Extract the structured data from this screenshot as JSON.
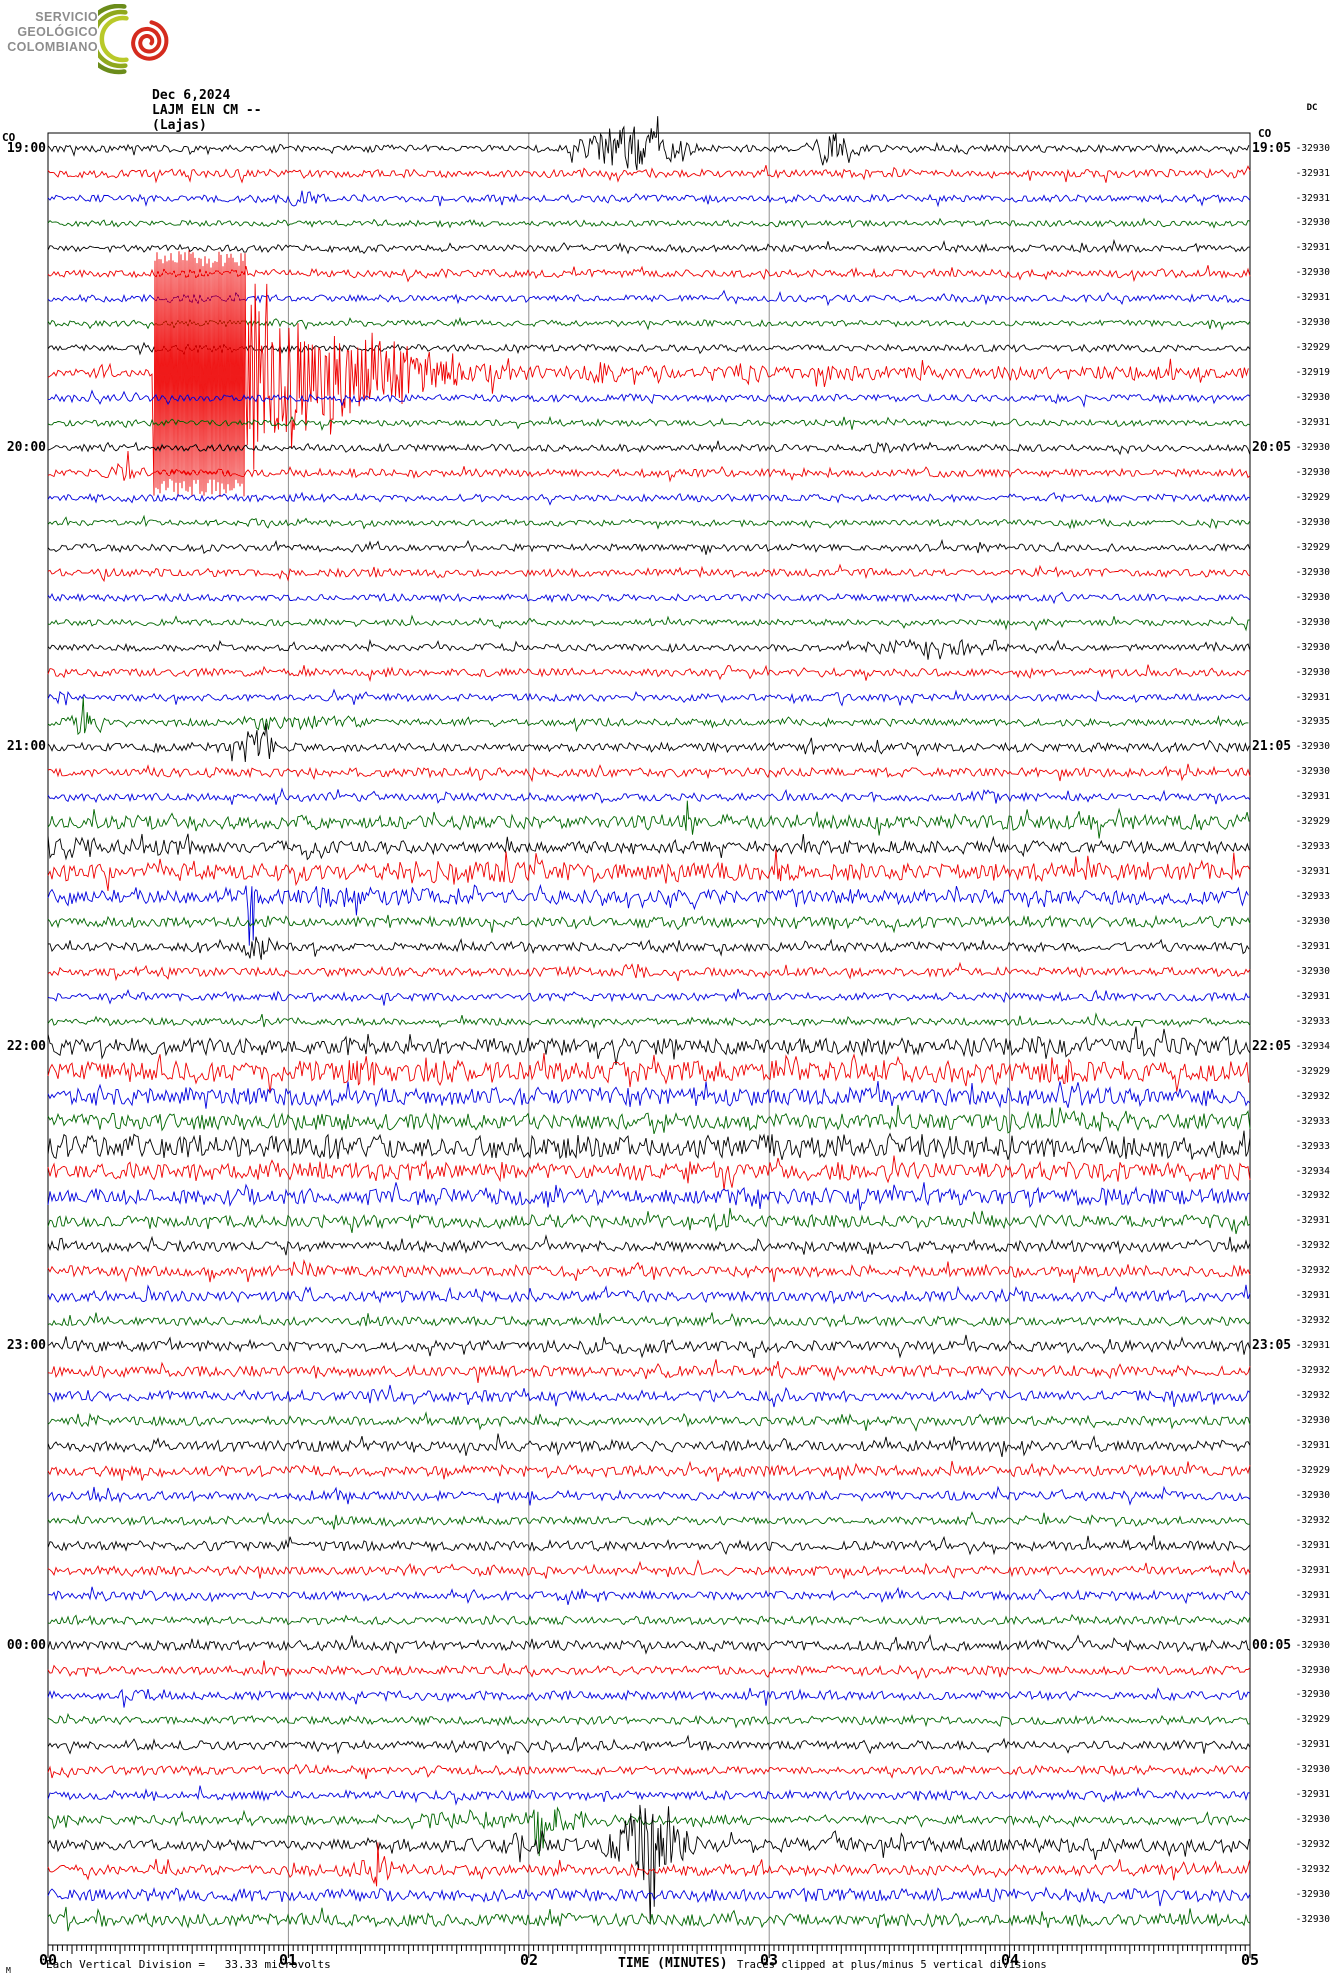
{
  "logo": {
    "lines": [
      "SERVICIO",
      "GEOLÓGICO",
      "COLOMBIANO"
    ]
  },
  "header": {
    "date": "Dec 6,2024",
    "station": "LAJM ELN CM --",
    "place": "(Lajas)"
  },
  "corner_labels": {
    "top_left": "CO",
    "top_right": "CO",
    "dc_header": "DC"
  },
  "left_labels": [
    {
      "row": 0,
      "text": "19:00"
    },
    {
      "row": 12,
      "text": "20:00"
    },
    {
      "row": 24,
      "text": "21:00"
    },
    {
      "row": 36,
      "text": "22:00"
    },
    {
      "row": 48,
      "text": "23:00"
    },
    {
      "row": 60,
      "text": "00:00"
    }
  ],
  "right_labels": [
    {
      "row": 0,
      "text": "19:05"
    },
    {
      "row": 12,
      "text": "20:05"
    },
    {
      "row": 24,
      "text": "21:05"
    },
    {
      "row": 36,
      "text": "22:05"
    },
    {
      "row": 48,
      "text": "23:05"
    },
    {
      "row": 60,
      "text": "00:05"
    }
  ],
  "axis": {
    "minute_labels": [
      "00",
      "01",
      "02",
      "03",
      "04",
      "05"
    ],
    "title": "TIME (MINUTES)",
    "clip_note": "Traces clipped at plus/minus 5 vertical divisions",
    "scale_note": "Each Vertical Division =   33.33 microvolts",
    "micro_prefix": "M"
  },
  "colors": {
    "black": "#000000",
    "red": "#ee0000",
    "blue": "#0000dd",
    "green": "#006600",
    "grid": "#909090",
    "border": "#000000",
    "logo_text": "#8d8d8d",
    "logo_red": "#d52b1e",
    "logo_greens": [
      "#6b8c1a",
      "#8fa81d",
      "#b9c929"
    ]
  },
  "chart_data": {
    "type": "line",
    "title": "LAJM ELN CM -- (Lajas) helicorder, Dec 6,2024",
    "xlabel": "TIME (MINUTES)",
    "x_range_minutes": [
      0,
      5
    ],
    "trace_interval_minutes": 5,
    "start_time": "19:00",
    "end_time": "00:55",
    "division_microvolts": 33.33,
    "clip_divisions": 5,
    "network": "CO",
    "dc_label": "DC",
    "rows": [
      {
        "t": "19:00",
        "c": "black",
        "dc": -32930,
        "a": 4,
        "e": [
          {
            "type": "burst",
            "m": 2.42,
            "w": 0.22,
            "amp": 26
          },
          {
            "type": "burst",
            "m": 3.28,
            "w": 0.1,
            "amp": 20
          }
        ]
      },
      {
        "t": "19:05",
        "c": "red",
        "dc": -32931,
        "a": 4.5,
        "e": []
      },
      {
        "t": "19:10",
        "c": "blue",
        "dc": -32931,
        "a": 4,
        "e": [
          {
            "type": "burst",
            "m": 1.05,
            "w": 0.13,
            "amp": 9
          }
        ]
      },
      {
        "t": "19:15",
        "c": "green",
        "dc": -32930,
        "a": 3.5,
        "e": []
      },
      {
        "t": "19:20",
        "c": "black",
        "dc": -32931,
        "a": 4,
        "e": []
      },
      {
        "t": "19:25",
        "c": "red",
        "dc": -32930,
        "a": 4.5,
        "e": []
      },
      {
        "t": "19:30",
        "c": "blue",
        "dc": -32931,
        "a": 4,
        "e": []
      },
      {
        "t": "19:35",
        "c": "green",
        "dc": -32930,
        "a": 3.5,
        "e": []
      },
      {
        "t": "19:40",
        "c": "black",
        "dc": -32929,
        "a": 4,
        "e": []
      },
      {
        "t": "19:45",
        "c": "red",
        "dc": -32919,
        "a": 4,
        "e": [
          {
            "type": "burst",
            "m": 0.22,
            "w": 0.05,
            "amp": 10
          },
          {
            "type": "sat",
            "m0": 0.44,
            "m1": 0.82
          },
          {
            "type": "decay",
            "m0": 0.82,
            "amp": 120,
            "tau": 0.45
          },
          {
            "type": "burst",
            "m": 1.15,
            "w": 0.12,
            "amp": 55
          },
          {
            "type": "burst",
            "m": 1.45,
            "w": 0.1,
            "amp": 35
          },
          {
            "type": "burst",
            "m": 2.3,
            "w": 0.15,
            "amp": 14
          },
          {
            "type": "burst",
            "m": 2.9,
            "w": 0.15,
            "amp": 12
          },
          {
            "type": "flat",
            "m0": 0.82,
            "m1": 5,
            "amp": 8
          }
        ]
      },
      {
        "t": "19:50",
        "c": "blue",
        "dc": -32930,
        "a": 4,
        "e": []
      },
      {
        "t": "19:55",
        "c": "green",
        "dc": -32931,
        "a": 3.5,
        "e": []
      },
      {
        "t": "20:00",
        "c": "black",
        "dc": -32930,
        "a": 4,
        "e": [
          {
            "type": "flat",
            "m0": 3.4,
            "m1": 3.7,
            "amp": 6
          }
        ]
      },
      {
        "t": "20:05",
        "c": "red",
        "dc": -32930,
        "a": 4.5,
        "e": [
          {
            "type": "burst",
            "m": 0.3,
            "w": 0.07,
            "amp": 14
          }
        ]
      },
      {
        "t": "20:10",
        "c": "blue",
        "dc": -32929,
        "a": 4,
        "e": []
      },
      {
        "t": "20:15",
        "c": "green",
        "dc": -32930,
        "a": 3.5,
        "e": [
          {
            "type": "burst",
            "m": 0.9,
            "w": 0.1,
            "amp": 7
          }
        ]
      },
      {
        "t": "20:20",
        "c": "black",
        "dc": -32929,
        "a": 4,
        "e": []
      },
      {
        "t": "20:25",
        "c": "red",
        "dc": -32930,
        "a": 4.5,
        "e": [
          {
            "type": "burst",
            "m": 0.25,
            "w": 0.06,
            "amp": 10
          }
        ]
      },
      {
        "t": "20:30",
        "c": "blue",
        "dc": -32930,
        "a": 4,
        "e": []
      },
      {
        "t": "20:35",
        "c": "green",
        "dc": -32930,
        "a": 3.5,
        "e": []
      },
      {
        "t": "20:40",
        "c": "black",
        "dc": -32930,
        "a": 4,
        "e": [
          {
            "type": "flat",
            "m0": 3.4,
            "m1": 3.95,
            "amp": 8
          }
        ]
      },
      {
        "t": "20:45",
        "c": "red",
        "dc": -32930,
        "a": 4.5,
        "e": []
      },
      {
        "t": "20:50",
        "c": "blue",
        "dc": -32931,
        "a": 4,
        "e": [
          {
            "type": "spike",
            "m": 0.06,
            "amp": 14
          },
          {
            "type": "spike",
            "m": 3.3,
            "amp": 11
          }
        ]
      },
      {
        "t": "20:55",
        "c": "green",
        "dc": -32935,
        "a": 4,
        "e": [
          {
            "type": "burst",
            "m": 0.16,
            "w": 0.09,
            "amp": 17
          },
          {
            "type": "flat",
            "m0": 0.8,
            "m1": 1.3,
            "amp": 8
          }
        ]
      },
      {
        "t": "21:00",
        "c": "black",
        "dc": -32930,
        "a": 5,
        "e": [
          {
            "type": "burst",
            "m": 0.86,
            "w": 0.09,
            "amp": 22
          }
        ]
      },
      {
        "t": "21:05",
        "c": "red",
        "dc": -32930,
        "a": 5,
        "e": []
      },
      {
        "t": "21:10",
        "c": "blue",
        "dc": -32931,
        "a": 4.5,
        "e": [
          {
            "type": "burst",
            "m": 3.9,
            "w": 0.08,
            "amp": 9
          }
        ]
      },
      {
        "t": "21:15",
        "c": "green",
        "dc": -32929,
        "a": 8,
        "e": [
          {
            "type": "spike",
            "m": 2.67,
            "amp": 26
          }
        ]
      },
      {
        "t": "21:20",
        "c": "black",
        "dc": -32933,
        "a": 7,
        "e": [
          {
            "type": "decay",
            "m0": 0,
            "amp": 14,
            "tau": 1.2
          },
          {
            "type": "spike",
            "m": 1.07,
            "amp": 18
          }
        ]
      },
      {
        "t": "21:25",
        "c": "red",
        "dc": -32931,
        "a": 10,
        "e": [
          {
            "type": "flat",
            "m0": 1.4,
            "m1": 2.3,
            "amp": 13
          },
          {
            "type": "spike",
            "m": 3.05,
            "amp": 26
          }
        ]
      },
      {
        "t": "21:30",
        "c": "blue",
        "dc": -32933,
        "a": 8,
        "e": [
          {
            "type": "spike",
            "m": 0.85,
            "amp": 34
          },
          {
            "type": "flat",
            "m0": 1.1,
            "m1": 1.6,
            "amp": 11
          }
        ]
      },
      {
        "t": "21:35",
        "c": "green",
        "dc": -32930,
        "a": 6,
        "e": []
      },
      {
        "t": "21:40",
        "c": "black",
        "dc": -32931,
        "a": 5,
        "e": [
          {
            "type": "burst",
            "m": 0.88,
            "w": 0.09,
            "amp": 17
          }
        ]
      },
      {
        "t": "21:45",
        "c": "red",
        "dc": -32930,
        "a": 5,
        "e": [
          {
            "type": "burst",
            "m": 2.45,
            "w": 0.07,
            "amp": 12
          }
        ]
      },
      {
        "t": "21:50",
        "c": "blue",
        "dc": -32931,
        "a": 4.5,
        "e": []
      },
      {
        "t": "21:55",
        "c": "green",
        "dc": -32933,
        "a": 4,
        "e": []
      },
      {
        "t": "22:00",
        "c": "black",
        "dc": -32934,
        "a": 9,
        "e": [
          {
            "type": "flat",
            "m0": 3.8,
            "m1": 5,
            "amp": 11
          },
          {
            "type": "spike",
            "m": 1.25,
            "amp": 14
          }
        ]
      },
      {
        "t": "22:05",
        "c": "red",
        "dc": -32929,
        "a": 12,
        "e": [
          {
            "type": "burst",
            "m": 1.3,
            "w": 0.13,
            "amp": 19
          },
          {
            "type": "burst",
            "m": 4.2,
            "w": 0.18,
            "amp": 17
          }
        ]
      },
      {
        "t": "22:10",
        "c": "blue",
        "dc": -32932,
        "a": 10,
        "e": [
          {
            "type": "spike",
            "m": 1.9,
            "amp": 17
          }
        ]
      },
      {
        "t": "22:15",
        "c": "green",
        "dc": -32933,
        "a": 9,
        "e": [
          {
            "type": "flat",
            "m0": 3.9,
            "m1": 4.5,
            "amp": 12
          }
        ]
      },
      {
        "t": "22:20",
        "c": "black",
        "dc": -32933,
        "a": 13,
        "e": []
      },
      {
        "t": "22:25",
        "c": "red",
        "dc": -32934,
        "a": 10,
        "e": []
      },
      {
        "t": "22:30",
        "c": "blue",
        "dc": -32932,
        "a": 9,
        "e": [
          {
            "type": "burst",
            "m": 4.1,
            "w": 0.15,
            "amp": 12
          }
        ]
      },
      {
        "t": "22:35",
        "c": "green",
        "dc": -32931,
        "a": 7,
        "e": [
          {
            "type": "burst",
            "m": 2.8,
            "w": 0.18,
            "amp": 10
          }
        ]
      },
      {
        "t": "22:40",
        "c": "black",
        "dc": -32932,
        "a": 6,
        "e": []
      },
      {
        "t": "22:45",
        "c": "red",
        "dc": -32932,
        "a": 6,
        "e": [
          {
            "type": "spike",
            "m": 2.45,
            "amp": 12
          }
        ]
      },
      {
        "t": "22:50",
        "c": "blue",
        "dc": -32931,
        "a": 6,
        "e": []
      },
      {
        "t": "22:55",
        "c": "green",
        "dc": -32932,
        "a": 5,
        "e": []
      },
      {
        "t": "23:00",
        "c": "black",
        "dc": -32931,
        "a": 6,
        "e": [
          {
            "type": "flat",
            "m0": 2.2,
            "m1": 2.6,
            "amp": 9
          }
        ]
      },
      {
        "t": "23:05",
        "c": "red",
        "dc": -32932,
        "a": 6,
        "e": [
          {
            "type": "burst",
            "m": 2.6,
            "w": 0.13,
            "amp": 10
          }
        ]
      },
      {
        "t": "23:10",
        "c": "blue",
        "dc": -32932,
        "a": 6,
        "e": [
          {
            "type": "burst",
            "m": 1.35,
            "w": 0.09,
            "amp": 11
          }
        ]
      },
      {
        "t": "23:15",
        "c": "green",
        "dc": -32930,
        "a": 5,
        "e": []
      },
      {
        "t": "23:20",
        "c": "black",
        "dc": -32931,
        "a": 6,
        "e": []
      },
      {
        "t": "23:25",
        "c": "red",
        "dc": -32929,
        "a": 6,
        "e": [
          {
            "type": "burst",
            "m": 0.3,
            "w": 0.09,
            "amp": 9
          }
        ]
      },
      {
        "t": "23:30",
        "c": "blue",
        "dc": -32930,
        "a": 5,
        "e": [
          {
            "type": "spike",
            "m": 1.2,
            "amp": 10
          }
        ]
      },
      {
        "t": "23:35",
        "c": "green",
        "dc": -32932,
        "a": 4.5,
        "e": [
          {
            "type": "spike",
            "m": 1.18,
            "amp": 14
          }
        ]
      },
      {
        "t": "23:40",
        "c": "black",
        "dc": -32931,
        "a": 5.5,
        "e": []
      },
      {
        "t": "23:45",
        "c": "red",
        "dc": -32931,
        "a": 5,
        "e": [
          {
            "type": "burst",
            "m": 0.35,
            "w": 0.06,
            "amp": 8
          }
        ]
      },
      {
        "t": "23:50",
        "c": "blue",
        "dc": -32931,
        "a": 5,
        "e": []
      },
      {
        "t": "23:55",
        "c": "green",
        "dc": -32931,
        "a": 4.5,
        "e": []
      },
      {
        "t": "00:00",
        "c": "black",
        "dc": -32930,
        "a": 5.5,
        "e": []
      },
      {
        "t": "00:05",
        "c": "red",
        "dc": -32930,
        "a": 5,
        "e": []
      },
      {
        "t": "00:10",
        "c": "blue",
        "dc": -32930,
        "a": 5,
        "e": [
          {
            "type": "burst",
            "m": 0.35,
            "w": 0.09,
            "amp": 8
          }
        ]
      },
      {
        "t": "00:15",
        "c": "green",
        "dc": -32929,
        "a": 4.5,
        "e": []
      },
      {
        "t": "00:20",
        "c": "black",
        "dc": -32931,
        "a": 5,
        "e": []
      },
      {
        "t": "00:25",
        "c": "red",
        "dc": -32930,
        "a": 5,
        "e": []
      },
      {
        "t": "00:30",
        "c": "blue",
        "dc": -32931,
        "a": 5,
        "e": []
      },
      {
        "t": "00:35",
        "c": "green",
        "dc": -32930,
        "a": 5,
        "e": [
          {
            "type": "flat",
            "m0": 1.5,
            "m1": 2.2,
            "amp": 9
          },
          {
            "type": "spike",
            "m": 2.05,
            "amp": 58
          },
          {
            "type": "decay",
            "m0": 2.05,
            "amp": 20,
            "tau": 0.3
          }
        ]
      },
      {
        "t": "00:40",
        "c": "black",
        "dc": -32932,
        "a": 6,
        "e": [
          {
            "type": "flat",
            "m0": 1.2,
            "m1": 5,
            "amp": 8
          },
          {
            "type": "burst",
            "m": 2.0,
            "w": 0.18,
            "amp": 14
          },
          {
            "type": "burst",
            "m": 2.5,
            "w": 0.17,
            "amp": 42
          },
          {
            "type": "spike",
            "m": 3.55,
            "amp": 16
          }
        ]
      },
      {
        "t": "00:45",
        "c": "red",
        "dc": -32932,
        "a": 6,
        "e": [
          {
            "type": "burst",
            "m": 1.38,
            "w": 0.07,
            "amp": 18
          },
          {
            "type": "flat",
            "m0": 1.0,
            "m1": 1.3,
            "amp": 8
          }
        ]
      },
      {
        "t": "00:50",
        "c": "blue",
        "dc": -32930,
        "a": 7,
        "e": []
      },
      {
        "t": "00:55",
        "c": "green",
        "dc": -32930,
        "a": 7,
        "e": []
      }
    ]
  }
}
